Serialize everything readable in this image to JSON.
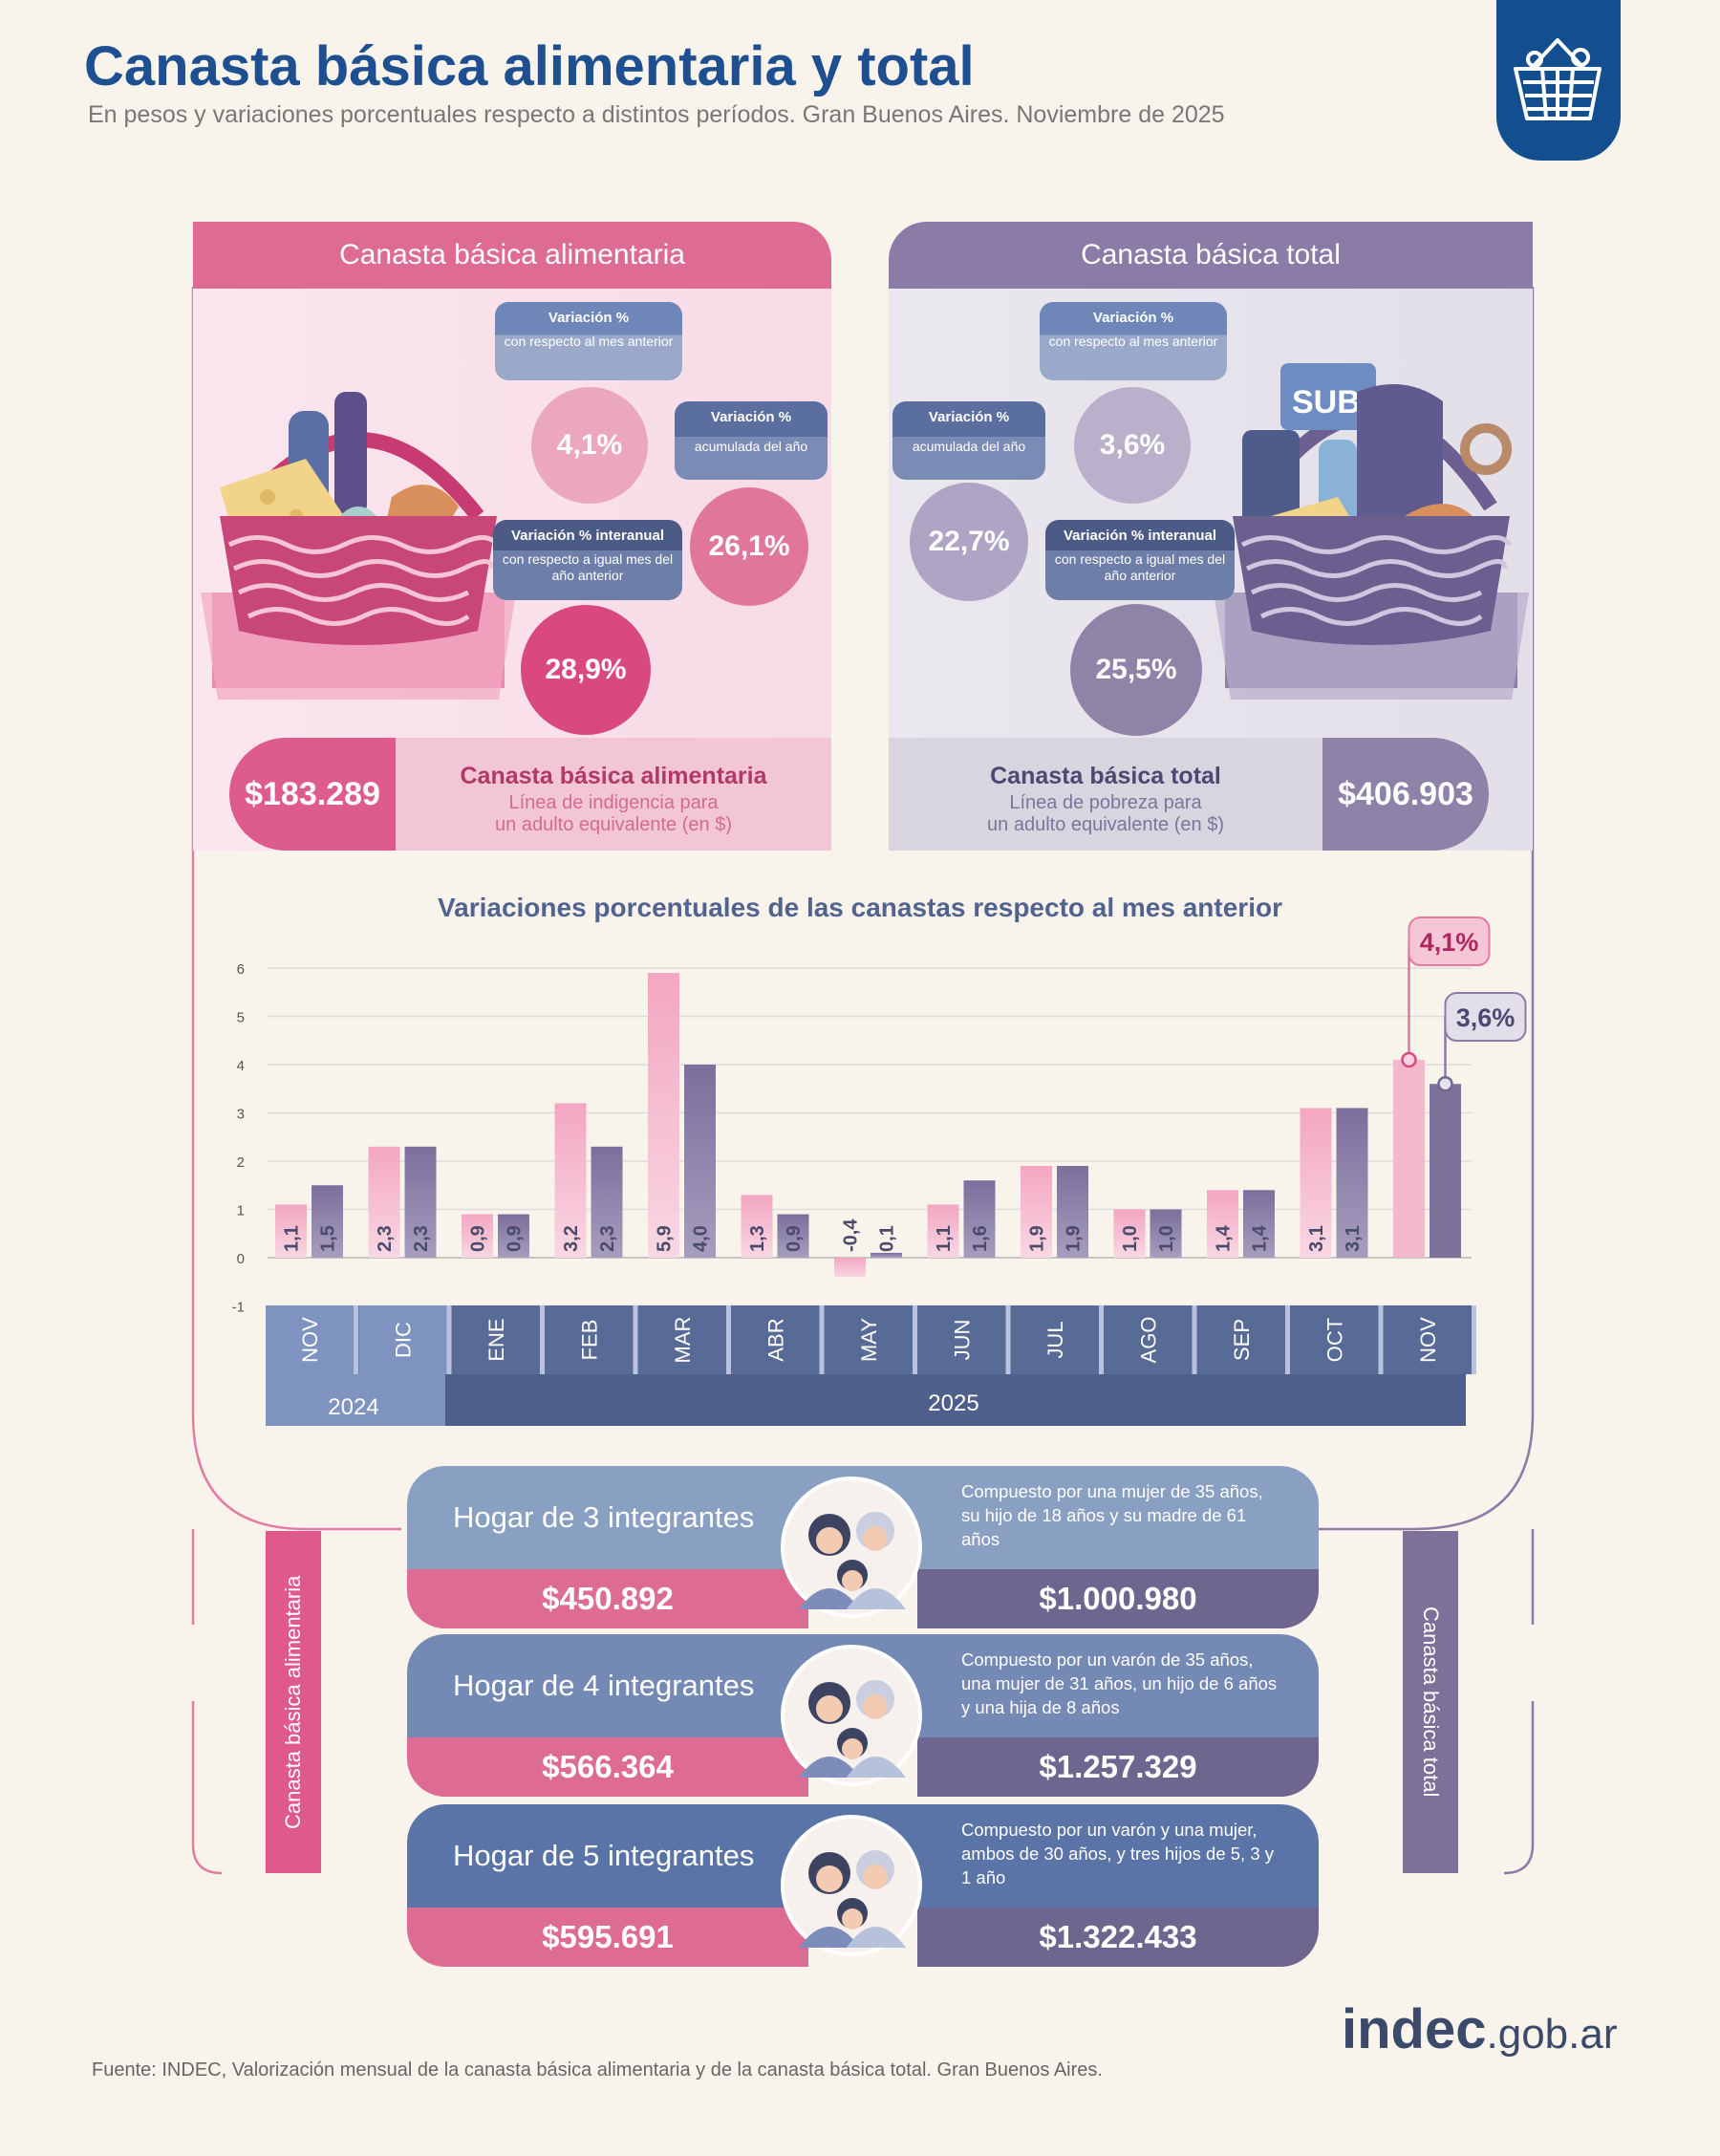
{
  "header": {
    "title": "Canasta básica alimentaria y total",
    "subtitle": "En pesos y variaciones porcentuales respecto a distintos períodos. Gran Buenos Aires. Noviembre de 2025"
  },
  "colors": {
    "alimentaria": "#f2b3c9",
    "total": "#8f84a8",
    "brand": "#1d4f91"
  },
  "alimentaria": {
    "heading": "Canasta básica alimentaria",
    "monthly_label": "Variación %",
    "monthly_sub": "con respecto al mes anterior",
    "monthly_value": "4,1%",
    "ytd_label": "Variación %",
    "ytd_sub": "acumulada del año",
    "ytd_value": "26,1%",
    "yoy_label": "Variación % interanual",
    "yoy_sub": "con respecto a igual mes del año anterior",
    "yoy_value": "28,9%",
    "price": "$183.289",
    "price_title": "Canasta básica alimentaria",
    "price_line1": "Línea de indigencia para",
    "price_line2": "un adulto equivalente (en $)"
  },
  "total": {
    "heading": "Canasta básica total",
    "monthly_label": "Variación %",
    "monthly_sub": "con respecto al mes anterior",
    "monthly_value": "3,6%",
    "ytd_label": "Variación %",
    "ytd_sub": "acumulada del año",
    "ytd_value": "22,7%",
    "yoy_label": "Variación % interanual",
    "yoy_sub": "con respecto a igual mes del año anterior",
    "yoy_value": "25,5%",
    "price": "$406.903",
    "price_title": "Canasta básica total",
    "price_line1": "Línea de pobreza para",
    "price_line2": "un adulto equivalente (en $)",
    "sube_text": "SUBE"
  },
  "chart_data": {
    "type": "bar",
    "title": "Variaciones porcentuales de las canastas respecto al mes anterior",
    "categories": [
      "NOV",
      "DIC",
      "ENE",
      "FEB",
      "MAR",
      "ABR",
      "MAY",
      "JUN",
      "JUL",
      "AGO",
      "SEP",
      "OCT",
      "NOV"
    ],
    "years": [
      {
        "label": "2024",
        "span": 2
      },
      {
        "label": "2025",
        "span": 11
      }
    ],
    "yticks": [
      "6",
      "5",
      "4",
      "3",
      "2",
      "1",
      "0",
      "-1"
    ],
    "ylim": [
      -1,
      6
    ],
    "grid": true,
    "series": [
      {
        "values": [
          1.1,
          2.3,
          0.9,
          3.2,
          5.9,
          1.3,
          -0.4,
          1.1,
          1.9,
          1.0,
          1.4,
          3.1,
          4.1
        ],
        "labels": [
          "1,1",
          "2,3",
          "0,9",
          "3,2",
          "5,9",
          "1,3",
          "-0,4",
          "1,1",
          "1,9",
          "1,0",
          "1,4",
          "3,1",
          ""
        ]
      },
      {
        "values": [
          1.5,
          2.3,
          0.9,
          2.3,
          4.0,
          0.9,
          0.1,
          1.6,
          1.9,
          1.0,
          1.4,
          3.1,
          3.6
        ],
        "labels": [
          "1,5",
          "2,3",
          "0,9",
          "2,3",
          "4,0",
          "0,9",
          "0,1",
          "1,6",
          "1,9",
          "1,0",
          "1,4",
          "3,1",
          ""
        ]
      }
    ],
    "callouts": [
      "4,1%",
      "3,6%"
    ]
  },
  "households": [
    {
      "title": "Hogar de 3 integrantes",
      "desc": "Compuesto por una mujer de 35 años, su hijo de 18 años y su madre de 61 años",
      "cba": "$450.892",
      "cbt": "$1.000.980",
      "color": "#8aa0c2"
    },
    {
      "title": "Hogar de 4 integrantes",
      "desc": "Compuesto por un varón de 35 años, una mujer de 31 años, un hijo de 6 años y una hija de 8 años",
      "cba": "$566.364",
      "cbt": "$1.257.329",
      "color": "#7589b5"
    },
    {
      "title": "Hogar de 5 integrantes",
      "desc": "Compuesto por un varón y una mujer, ambos de 30 años, y tres hijos de 5, 3 y 1 año",
      "cba": "$595.691",
      "cbt": "$1.322.433",
      "color": "#5a74a8"
    }
  ],
  "side_labels": {
    "left": "Canasta básica alimentaria",
    "right": "Canasta básica total"
  },
  "footer": {
    "source": "Fuente: INDEC, Valorización mensual de la canasta básica alimentaria y de la canasta básica total. Gran Buenos Aires.",
    "logo_main": "indec",
    "logo_suffix": ".gob.ar"
  }
}
